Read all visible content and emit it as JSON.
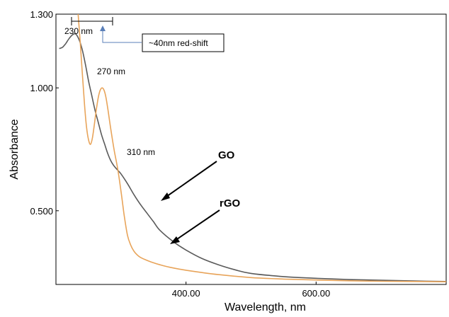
{
  "chart_data": {
    "type": "line",
    "xlabel": "Wavelength, nm",
    "ylabel": "Absorbance",
    "xlim": [
      200,
      800
    ],
    "ylim": [
      0.2,
      1.3
    ],
    "x_ticks": [
      400,
      600
    ],
    "x_tick_labels": [
      "400.00",
      "600.00"
    ],
    "y_ticks": [
      0.5,
      1.0,
      1.3
    ],
    "y_tick_labels": [
      "0.500",
      "1.000",
      "1.300"
    ],
    "grid": false,
    "series": [
      {
        "name": "GO",
        "color": "#5a5a5a",
        "x": [
          205,
          210,
          215,
          220,
          225,
          230,
          235,
          240,
          245,
          250,
          255,
          260,
          265,
          270,
          275,
          280,
          285,
          290,
          295,
          300,
          310,
          320,
          330,
          340,
          350,
          360,
          380,
          400,
          425,
          450,
          475,
          500,
          550,
          600,
          650,
          700,
          750,
          800
        ],
        "y": [
          1.16,
          1.165,
          1.18,
          1.2,
          1.215,
          1.22,
          1.2,
          1.16,
          1.1,
          1.03,
          0.97,
          0.91,
          0.86,
          0.81,
          0.77,
          0.73,
          0.7,
          0.68,
          0.665,
          0.65,
          0.61,
          0.565,
          0.525,
          0.49,
          0.455,
          0.42,
          0.375,
          0.34,
          0.305,
          0.28,
          0.26,
          0.245,
          0.232,
          0.225,
          0.22,
          0.217,
          0.214,
          0.212
        ]
      },
      {
        "name": "rGO",
        "color": "#e8a45a",
        "x": [
          233,
          235,
          238,
          241,
          244,
          247,
          250,
          253,
          256,
          259,
          262,
          265,
          268,
          271,
          274,
          277,
          280,
          285,
          290,
          295,
          300,
          305,
          310,
          315,
          320,
          325,
          330,
          340,
          350,
          360,
          375,
          400,
          450,
          500,
          550,
          600,
          650,
          700,
          750,
          800
        ],
        "y": [
          1.34,
          1.27,
          1.16,
          1.04,
          0.93,
          0.84,
          0.79,
          0.77,
          0.795,
          0.85,
          0.91,
          0.96,
          0.99,
          1.0,
          0.99,
          0.96,
          0.91,
          0.82,
          0.74,
          0.67,
          0.58,
          0.48,
          0.4,
          0.36,
          0.335,
          0.32,
          0.31,
          0.298,
          0.288,
          0.28,
          0.27,
          0.258,
          0.24,
          0.228,
          0.222,
          0.218,
          0.215,
          0.213,
          0.212,
          0.211
        ]
      }
    ],
    "annotations": [
      {
        "text": "230 nm",
        "x": 230,
        "y": 1.22
      },
      {
        "text": "270 nm",
        "x": 270,
        "y": 1.0
      },
      {
        "text": "310 nm",
        "x": 310,
        "y": 0.65
      },
      {
        "text": "~40nm red-shift"
      },
      {
        "text": "GO"
      },
      {
        "text": "rGO"
      }
    ]
  }
}
